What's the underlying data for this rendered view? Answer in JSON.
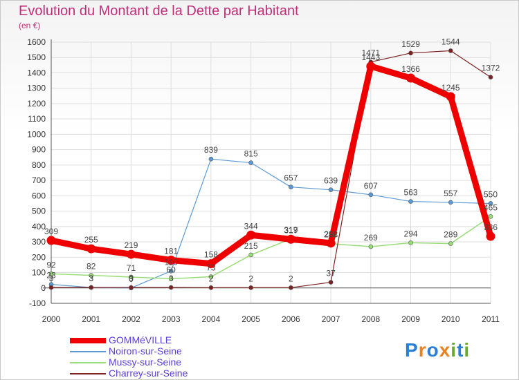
{
  "header": {
    "title": "Evolution du Montant de la Dette par Habitant",
    "unit": "(en €)"
  },
  "logo": {
    "text": "Proxiti",
    "colors": [
      "#2a7fd4",
      "#e8821e",
      "#2a7fd4",
      "#e8821e",
      "#6aa82f",
      "#2a7fd4",
      "#6aa82f"
    ]
  },
  "chart_data": {
    "type": "line",
    "x": [
      "2000",
      "2001",
      "2002",
      "2003",
      "2004",
      "2005",
      "2006",
      "2007",
      "2008",
      "2009",
      "2010",
      "2011"
    ],
    "ylim": [
      -100,
      1600
    ],
    "yticks": [
      -100,
      0,
      100,
      200,
      300,
      400,
      500,
      600,
      700,
      800,
      900,
      1000,
      1100,
      1200,
      1300,
      1400,
      1500,
      1600
    ],
    "grid": true,
    "legend_position": "bottom-left",
    "series": [
      {
        "name": "GOMMéVILLE",
        "color": "#ee0000",
        "values": [
          309,
          255,
          219,
          181,
          158,
          344,
          317,
          292,
          1443,
          1366,
          1245,
          336
        ]
      },
      {
        "name": "Noiron-sur-Seine",
        "color": "#5b9ad5",
        "values": [
          23,
          3,
          0,
          110,
          839,
          815,
          657,
          639,
          607,
          563,
          557,
          550
        ]
      },
      {
        "name": "Mussy-sur-Seine",
        "color": "#99dd77",
        "values": [
          92,
          82,
          71,
          60,
          73,
          215,
          319,
          288,
          269,
          294,
          289,
          465
        ]
      },
      {
        "name": "Charrey-sur-Seine",
        "color": "#7a2020",
        "values": [
          3,
          3,
          3,
          3,
          2,
          2,
          2,
          37,
          1471,
          1529,
          1544,
          1372
        ]
      }
    ],
    "data_labels": [
      {
        "series": 0,
        "labels": [
          "309",
          "255",
          "219",
          "181",
          "158",
          "344",
          "317",
          "292",
          "1443",
          "1366",
          "1245",
          "336"
        ]
      },
      {
        "series": 1,
        "labels": [
          "23",
          "3",
          "0",
          "110",
          "839",
          "815",
          "657",
          "639",
          "607",
          "563",
          "557",
          "550"
        ]
      },
      {
        "series": 2,
        "labels": [
          "92",
          "82",
          "71",
          "60",
          "73",
          "215",
          "319",
          "288",
          "269",
          "294",
          "289",
          "465"
        ]
      },
      {
        "series": 3,
        "labels": [
          "3",
          "3",
          "3",
          "3",
          "2",
          "2",
          "2",
          "37",
          "1471",
          "1529",
          "1544",
          "1372"
        ]
      }
    ]
  }
}
